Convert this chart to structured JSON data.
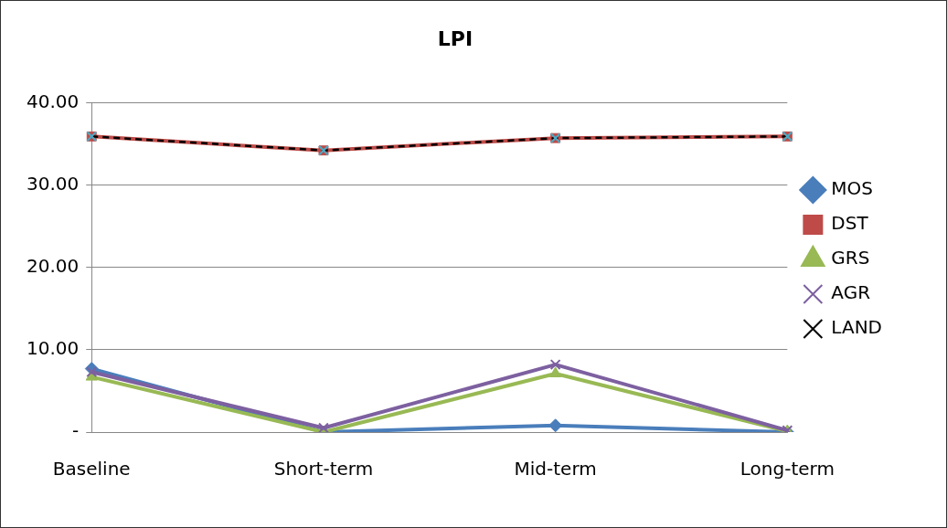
{
  "chart_data": {
    "type": "line",
    "title": "LPI",
    "categories": [
      "Baseline",
      "Short-term",
      "Mid-term",
      "Long-term"
    ],
    "series": [
      {
        "name": "MOS",
        "color": "#4a7ebb",
        "marker": "diamond",
        "values": [
          7.7,
          0,
          0.8,
          0
        ]
      },
      {
        "name": "DST",
        "color": "#be4b48",
        "marker": "square",
        "values": [
          35.9,
          34.2,
          35.7,
          35.9
        ]
      },
      {
        "name": "GRS",
        "color": "#98b954",
        "marker": "triangle",
        "values": [
          6.7,
          0,
          7.1,
          0.1
        ]
      },
      {
        "name": "AGR",
        "color": "#7d60a0",
        "marker": "cross",
        "values": [
          7.3,
          0.5,
          8.2,
          0.2
        ]
      },
      {
        "name": "LAND",
        "color": "#000000",
        "marker": "cross",
        "line_style": "dashed",
        "values": [
          35.9,
          34.2,
          35.7,
          35.9
        ]
      }
    ],
    "ylim": [
      0,
      40
    ],
    "yticks": [
      {
        "value": 0,
        "label": "-"
      },
      {
        "value": 10,
        "label": "10.00"
      },
      {
        "value": 20,
        "label": "20.00"
      },
      {
        "value": 30,
        "label": "30.00"
      },
      {
        "value": 40,
        "label": "40.00"
      }
    ],
    "grid": "y",
    "legend": "right"
  }
}
